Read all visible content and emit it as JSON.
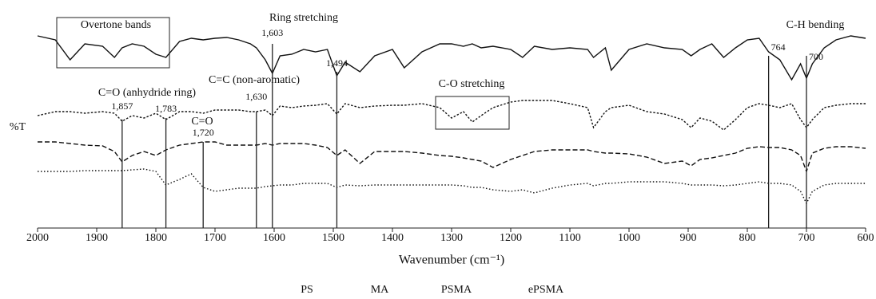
{
  "chart_data": {
    "type": "line",
    "x_label": "Wavenumber (cm⁻¹)",
    "y_label": "%T",
    "x": [
      2000,
      1970,
      1945,
      1920,
      1890,
      1870,
      1857,
      1840,
      1820,
      1800,
      1783,
      1760,
      1740,
      1720,
      1700,
      1680,
      1660,
      1640,
      1630,
      1615,
      1603,
      1590,
      1570,
      1550,
      1530,
      1510,
      1494,
      1480,
      1455,
      1430,
      1400,
      1380,
      1350,
      1320,
      1300,
      1280,
      1265,
      1250,
      1230,
      1200,
      1180,
      1160,
      1130,
      1100,
      1070,
      1060,
      1040,
      1030,
      1000,
      970,
      940,
      910,
      895,
      880,
      860,
      840,
      820,
      800,
      780,
      764,
      745,
      725,
      710,
      700,
      690,
      670,
      650,
      625,
      600
    ],
    "xlim": [
      2000,
      600
    ],
    "xticks": [
      2000,
      1900,
      1800,
      1700,
      1600,
      1500,
      1400,
      1300,
      1200,
      1100,
      1000,
      900,
      800,
      700,
      600
    ],
    "ylim": [
      0,
      280
    ],
    "series": [
      {
        "name": "PS",
        "color": "#111111",
        "line_style": "solid",
        "values": [
          241,
          236,
          211,
          231,
          228,
          214,
          226,
          231,
          228,
          218,
          214,
          234,
          238,
          236,
          238,
          239,
          236,
          231,
          226,
          211,
          194,
          216,
          218,
          224,
          221,
          224,
          191,
          208,
          196,
          216,
          224,
          201,
          221,
          231,
          231,
          228,
          231,
          226,
          228,
          224,
          214,
          228,
          224,
          226,
          224,
          214,
          226,
          198,
          224,
          231,
          226,
          224,
          216,
          224,
          231,
          214,
          226,
          236,
          238,
          221,
          211,
          186,
          206,
          188,
          206,
          226,
          236,
          241,
          238
        ]
      },
      {
        "name": "MA",
        "color": "#111111",
        "line_style": "short-dash",
        "values": [
          141,
          146,
          146,
          144,
          146,
          144,
          134,
          141,
          138,
          144,
          136,
          146,
          146,
          144,
          148,
          148,
          148,
          146,
          146,
          148,
          141,
          153,
          151,
          153,
          154,
          156,
          143,
          156,
          151,
          153,
          154,
          154,
          156,
          151,
          138,
          146,
          133,
          141,
          151,
          158,
          160,
          160,
          160,
          156,
          151,
          126,
          146,
          151,
          154,
          146,
          143,
          136,
          126,
          138,
          134,
          123,
          136,
          151,
          156,
          154,
          151,
          156,
          136,
          126,
          136,
          151,
          154,
          156,
          156
        ]
      },
      {
        "name": "PSMA",
        "color": "#111111",
        "line_style": "dash",
        "values": [
          108,
          108,
          106,
          104,
          103,
          96,
          83,
          91,
          96,
          91,
          98,
          104,
          106,
          108,
          108,
          104,
          104,
          104,
          104,
          106,
          104,
          106,
          106,
          106,
          104,
          101,
          91,
          98,
          81,
          96,
          96,
          96,
          94,
          91,
          90,
          88,
          86,
          84,
          76,
          86,
          91,
          96,
          98,
          98,
          98,
          96,
          94,
          94,
          93,
          89,
          81,
          84,
          78,
          86,
          88,
          91,
          94,
          100,
          102,
          101,
          101,
          98,
          91,
          71,
          94,
          100,
          102,
          102,
          100
        ]
      },
      {
        "name": "ePSMA",
        "color": "#111111",
        "line_style": "dot",
        "values": [
          71,
          71,
          71,
          72,
          72,
          72,
          72,
          73,
          74,
          71,
          54,
          61,
          68,
          51,
          46,
          48,
          50,
          50,
          50,
          52,
          53,
          54,
          54,
          56,
          56,
          56,
          51,
          54,
          53,
          54,
          54,
          54,
          54,
          54,
          54,
          53,
          51,
          51,
          48,
          46,
          48,
          44,
          50,
          54,
          56,
          53,
          56,
          56,
          58,
          58,
          58,
          56,
          54,
          54,
          54,
          53,
          54,
          56,
          58,
          56,
          56,
          54,
          46,
          31,
          46,
          54,
          56,
          56,
          56
        ]
      }
    ],
    "markers": [
      {
        "value": 1857,
        "label": "1,857"
      },
      {
        "value": 1783,
        "label": "1,783"
      },
      {
        "value": 1720,
        "label": "1,720"
      },
      {
        "value": 1630,
        "label": "1,630"
      },
      {
        "value": 1603,
        "label": "1,603"
      },
      {
        "value": 1494,
        "label": "1,494"
      },
      {
        "value": 764,
        "label": "764"
      },
      {
        "value": 700,
        "label": "700"
      }
    ],
    "annotations": [
      "Overtone bands",
      "Ring stretching",
      "C=O (anhydride ring)",
      "C=C (non-aromatic)",
      "C=O",
      "C-O stretching",
      "C-H bending"
    ]
  }
}
